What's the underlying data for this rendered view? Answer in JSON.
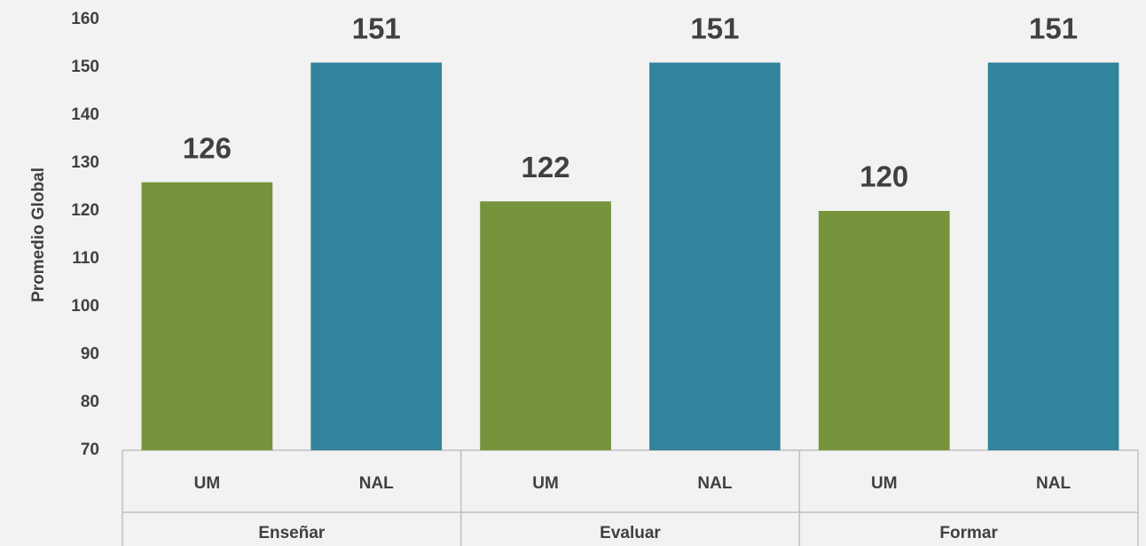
{
  "chart_data": {
    "type": "bar",
    "y_label": "Promedio Global",
    "categories": [
      "UM",
      "NAL",
      "UM",
      "NAL",
      "UM",
      "NAL"
    ],
    "groups": [
      "Enseñar",
      "Evaluar",
      "Formar"
    ],
    "values": [
      126,
      151,
      122,
      151,
      120,
      151
    ],
    "colors": [
      "#77933c",
      "#31849b",
      "#77933c",
      "#31849b",
      "#77933c",
      "#31849b"
    ],
    "ylim": [
      70,
      160
    ],
    "yticks": [
      70,
      80,
      90,
      100,
      110,
      120,
      130,
      140,
      150,
      160
    ],
    "grid": false,
    "data_labels": true
  }
}
